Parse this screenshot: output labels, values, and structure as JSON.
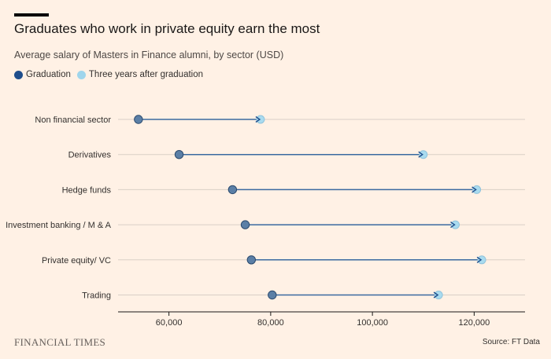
{
  "title": "Graduates who work in private equity earn the most",
  "subtitle": "Average salary of Masters in Finance alumni, by sector (USD)",
  "legend": [
    {
      "label": "Graduation",
      "color": "#1f4e8c"
    },
    {
      "label": "Three years after graduation",
      "color": "#9fd5ec"
    }
  ],
  "brand": "FINANCIAL TIMES",
  "source": "Source: FT Data",
  "chart_data": {
    "type": "dumbbell",
    "categories": [
      "Non financial sector",
      "Derivatives",
      "Hedge funds",
      "Investment banking / M & A",
      "Private equity/ VC",
      "Trading"
    ],
    "series": [
      {
        "name": "Graduation",
        "values": [
          54000,
          62000,
          72500,
          75000,
          76200,
          80300
        ]
      },
      {
        "name": "Three years after graduation",
        "values": [
          78000,
          110000,
          120500,
          116300,
          121500,
          113000
        ]
      }
    ],
    "xlim": [
      50000,
      130000
    ],
    "xticks": [
      60000,
      80000,
      100000,
      120000
    ],
    "xtick_labels": [
      "60,000",
      "80,000",
      "100,000",
      "120,000"
    ],
    "colors": {
      "start": "#5b7fa6",
      "end": "#a9dbef",
      "line": "#3a6aa0",
      "grid": "#d9cfc6",
      "axis": "#1a1817"
    }
  }
}
